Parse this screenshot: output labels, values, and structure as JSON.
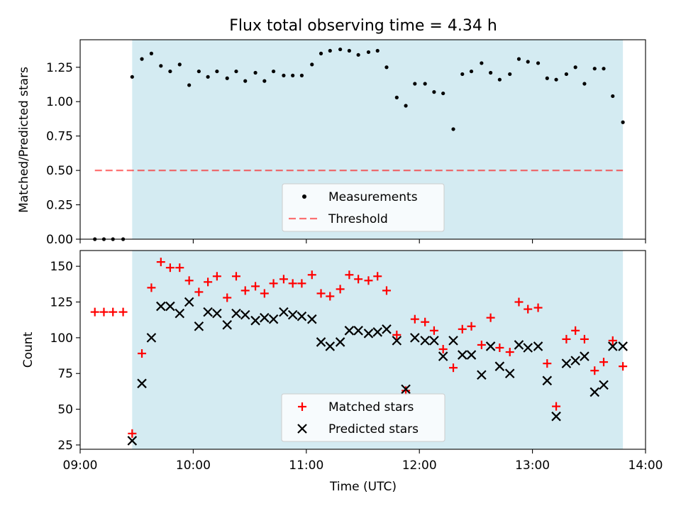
{
  "colors": {
    "observing_window": "#add8e6",
    "measurement": "#000000",
    "threshold": "#ff6b6b",
    "matched": "#ff0000",
    "predicted": "#000000",
    "legend_bg": "#ffffff"
  },
  "chart_data": [
    {
      "id": "ratio",
      "type": "scatter",
      "title": "Flux total observing time = 4.34 h",
      "xlabel": "",
      "ylabel": "Matched/Predicted stars",
      "xlim": [
        9.0,
        14.0
      ],
      "ylim": [
        0,
        1.45
      ],
      "yticks": [
        0,
        0.25,
        0.5,
        0.75,
        1.0,
        1.25
      ],
      "ytick_labels": [
        "0.00",
        "0.25",
        "0.50",
        "0.75",
        "1.00",
        "1.25"
      ],
      "observing_window": [
        9.46,
        13.8
      ],
      "threshold": {
        "value": 0.5,
        "x_range": [
          9.13,
          13.8
        ],
        "label": "Threshold"
      },
      "legend": {
        "position": "lower-center",
        "entries": [
          "Measurements",
          "Threshold"
        ]
      },
      "series": [
        {
          "name": "Measurements",
          "x": [
            9.13,
            9.21,
            9.29,
            9.38,
            9.46,
            9.546,
            9.63,
            9.714,
            9.796,
            9.88,
            9.964,
            10.05,
            10.13,
            10.21,
            10.3,
            10.38,
            10.46,
            10.55,
            10.63,
            10.71,
            10.8,
            10.88,
            10.96,
            11.05,
            11.13,
            11.21,
            11.3,
            11.38,
            11.46,
            11.55,
            11.63,
            11.71,
            11.8,
            11.88,
            11.96,
            12.05,
            12.13,
            12.21,
            12.3,
            12.38,
            12.46,
            12.55,
            12.63,
            12.71,
            12.8,
            12.88,
            12.96,
            13.05,
            13.13,
            13.21,
            13.3,
            13.38,
            13.46,
            13.55,
            13.63,
            13.71,
            13.8
          ],
          "y": [
            0,
            0,
            0,
            0,
            1.18,
            1.31,
            1.35,
            1.26,
            1.22,
            1.27,
            1.12,
            1.22,
            1.18,
            1.22,
            1.17,
            1.22,
            1.15,
            1.21,
            1.15,
            1.22,
            1.19,
            1.19,
            1.19,
            1.27,
            1.35,
            1.37,
            1.38,
            1.37,
            1.34,
            1.36,
            1.37,
            1.25,
            1.03,
            0.97,
            1.13,
            1.13,
            1.07,
            1.06,
            0.8,
            1.2,
            1.22,
            1.28,
            1.21,
            1.16,
            1.2,
            1.31,
            1.29,
            1.28,
            1.17,
            1.16,
            1.2,
            1.25,
            1.13,
            1.24,
            1.24,
            1.04,
            0.85
          ]
        }
      ]
    },
    {
      "id": "counts",
      "type": "scatter",
      "title": "",
      "xlabel": "Time (UTC)",
      "ylabel": "Count",
      "xlim": [
        9.0,
        14.0
      ],
      "ylim": [
        22,
        161
      ],
      "yticks": [
        25,
        50,
        75,
        100,
        125,
        150
      ],
      "ytick_labels": [
        "25",
        "50",
        "75",
        "100",
        "125",
        "150"
      ],
      "xticks": [
        9,
        10,
        11,
        12,
        13,
        14
      ],
      "xtick_labels": [
        "09:00",
        "10:00",
        "11:00",
        "12:00",
        "13:00",
        "14:00"
      ],
      "observing_window": [
        9.46,
        13.8
      ],
      "legend": {
        "position": "lower-center",
        "entries": [
          "Matched stars",
          "Predicted stars"
        ]
      },
      "categories_x": [
        9.13,
        9.21,
        9.29,
        9.38,
        9.46,
        9.546,
        9.63,
        9.714,
        9.796,
        9.88,
        9.964,
        10.05,
        10.13,
        10.21,
        10.3,
        10.38,
        10.46,
        10.55,
        10.63,
        10.71,
        10.8,
        10.88,
        10.96,
        11.05,
        11.13,
        11.21,
        11.3,
        11.38,
        11.46,
        11.55,
        11.63,
        11.71,
        11.8,
        11.88,
        11.96,
        12.05,
        12.13,
        12.21,
        12.3,
        12.38,
        12.46,
        12.55,
        12.63,
        12.71,
        12.8,
        12.88,
        12.96,
        13.05,
        13.13,
        13.21,
        13.3,
        13.38,
        13.46,
        13.55,
        13.63,
        13.71,
        13.8
      ],
      "series": [
        {
          "name": "Matched stars",
          "x": [
            9.13,
            9.21,
            9.29,
            9.38,
            9.46,
            9.546,
            9.63,
            9.714,
            9.796,
            9.88,
            9.964,
            10.05,
            10.13,
            10.21,
            10.3,
            10.38,
            10.46,
            10.55,
            10.63,
            10.71,
            10.8,
            10.88,
            10.96,
            11.05,
            11.13,
            11.21,
            11.3,
            11.38,
            11.46,
            11.55,
            11.63,
            11.71,
            11.8,
            11.88,
            11.96,
            12.05,
            12.13,
            12.21,
            12.3,
            12.38,
            12.46,
            12.55,
            12.63,
            12.71,
            12.8,
            12.88,
            12.96,
            13.05,
            13.13,
            13.21,
            13.3,
            13.38,
            13.46,
            13.55,
            13.63,
            13.71,
            13.8
          ],
          "y": [
            118,
            118,
            118,
            118,
            33,
            89,
            135,
            153,
            149,
            149,
            140,
            132,
            139,
            143,
            128,
            143,
            133,
            136,
            131,
            138,
            141,
            138,
            138,
            144,
            131,
            129,
            134,
            144,
            141,
            140,
            143,
            133,
            102,
            63,
            113,
            111,
            105,
            92,
            79,
            106,
            108,
            95,
            114,
            93,
            90,
            125,
            120,
            121,
            82,
            52,
            99,
            105,
            99,
            77,
            83,
            98,
            80
          ]
        },
        {
          "name": "Predicted stars",
          "x": [
            9.46,
            9.546,
            9.63,
            9.714,
            9.796,
            9.88,
            9.964,
            10.05,
            10.13,
            10.21,
            10.3,
            10.38,
            10.46,
            10.55,
            10.63,
            10.71,
            10.8,
            10.88,
            10.96,
            11.05,
            11.13,
            11.21,
            11.3,
            11.38,
            11.46,
            11.55,
            11.63,
            11.71,
            11.8,
            11.88,
            11.96,
            12.05,
            12.13,
            12.21,
            12.3,
            12.38,
            12.46,
            12.55,
            12.63,
            12.71,
            12.8,
            12.88,
            12.96,
            13.05,
            13.13,
            13.21,
            13.3,
            13.38,
            13.46,
            13.55,
            13.63,
            13.71,
            13.8
          ],
          "y": [
            28,
            68,
            100,
            122,
            122,
            117,
            125,
            108,
            118,
            117,
            109,
            117,
            116,
            112,
            114,
            113,
            118,
            116,
            115,
            113,
            97,
            94,
            97,
            105,
            105,
            103,
            104,
            106,
            98,
            64,
            100,
            98,
            98,
            87,
            98,
            88,
            88,
            74,
            94,
            80,
            75,
            95,
            93,
            94,
            70,
            45,
            82,
            84,
            87,
            62,
            67,
            94,
            94
          ]
        }
      ]
    }
  ]
}
